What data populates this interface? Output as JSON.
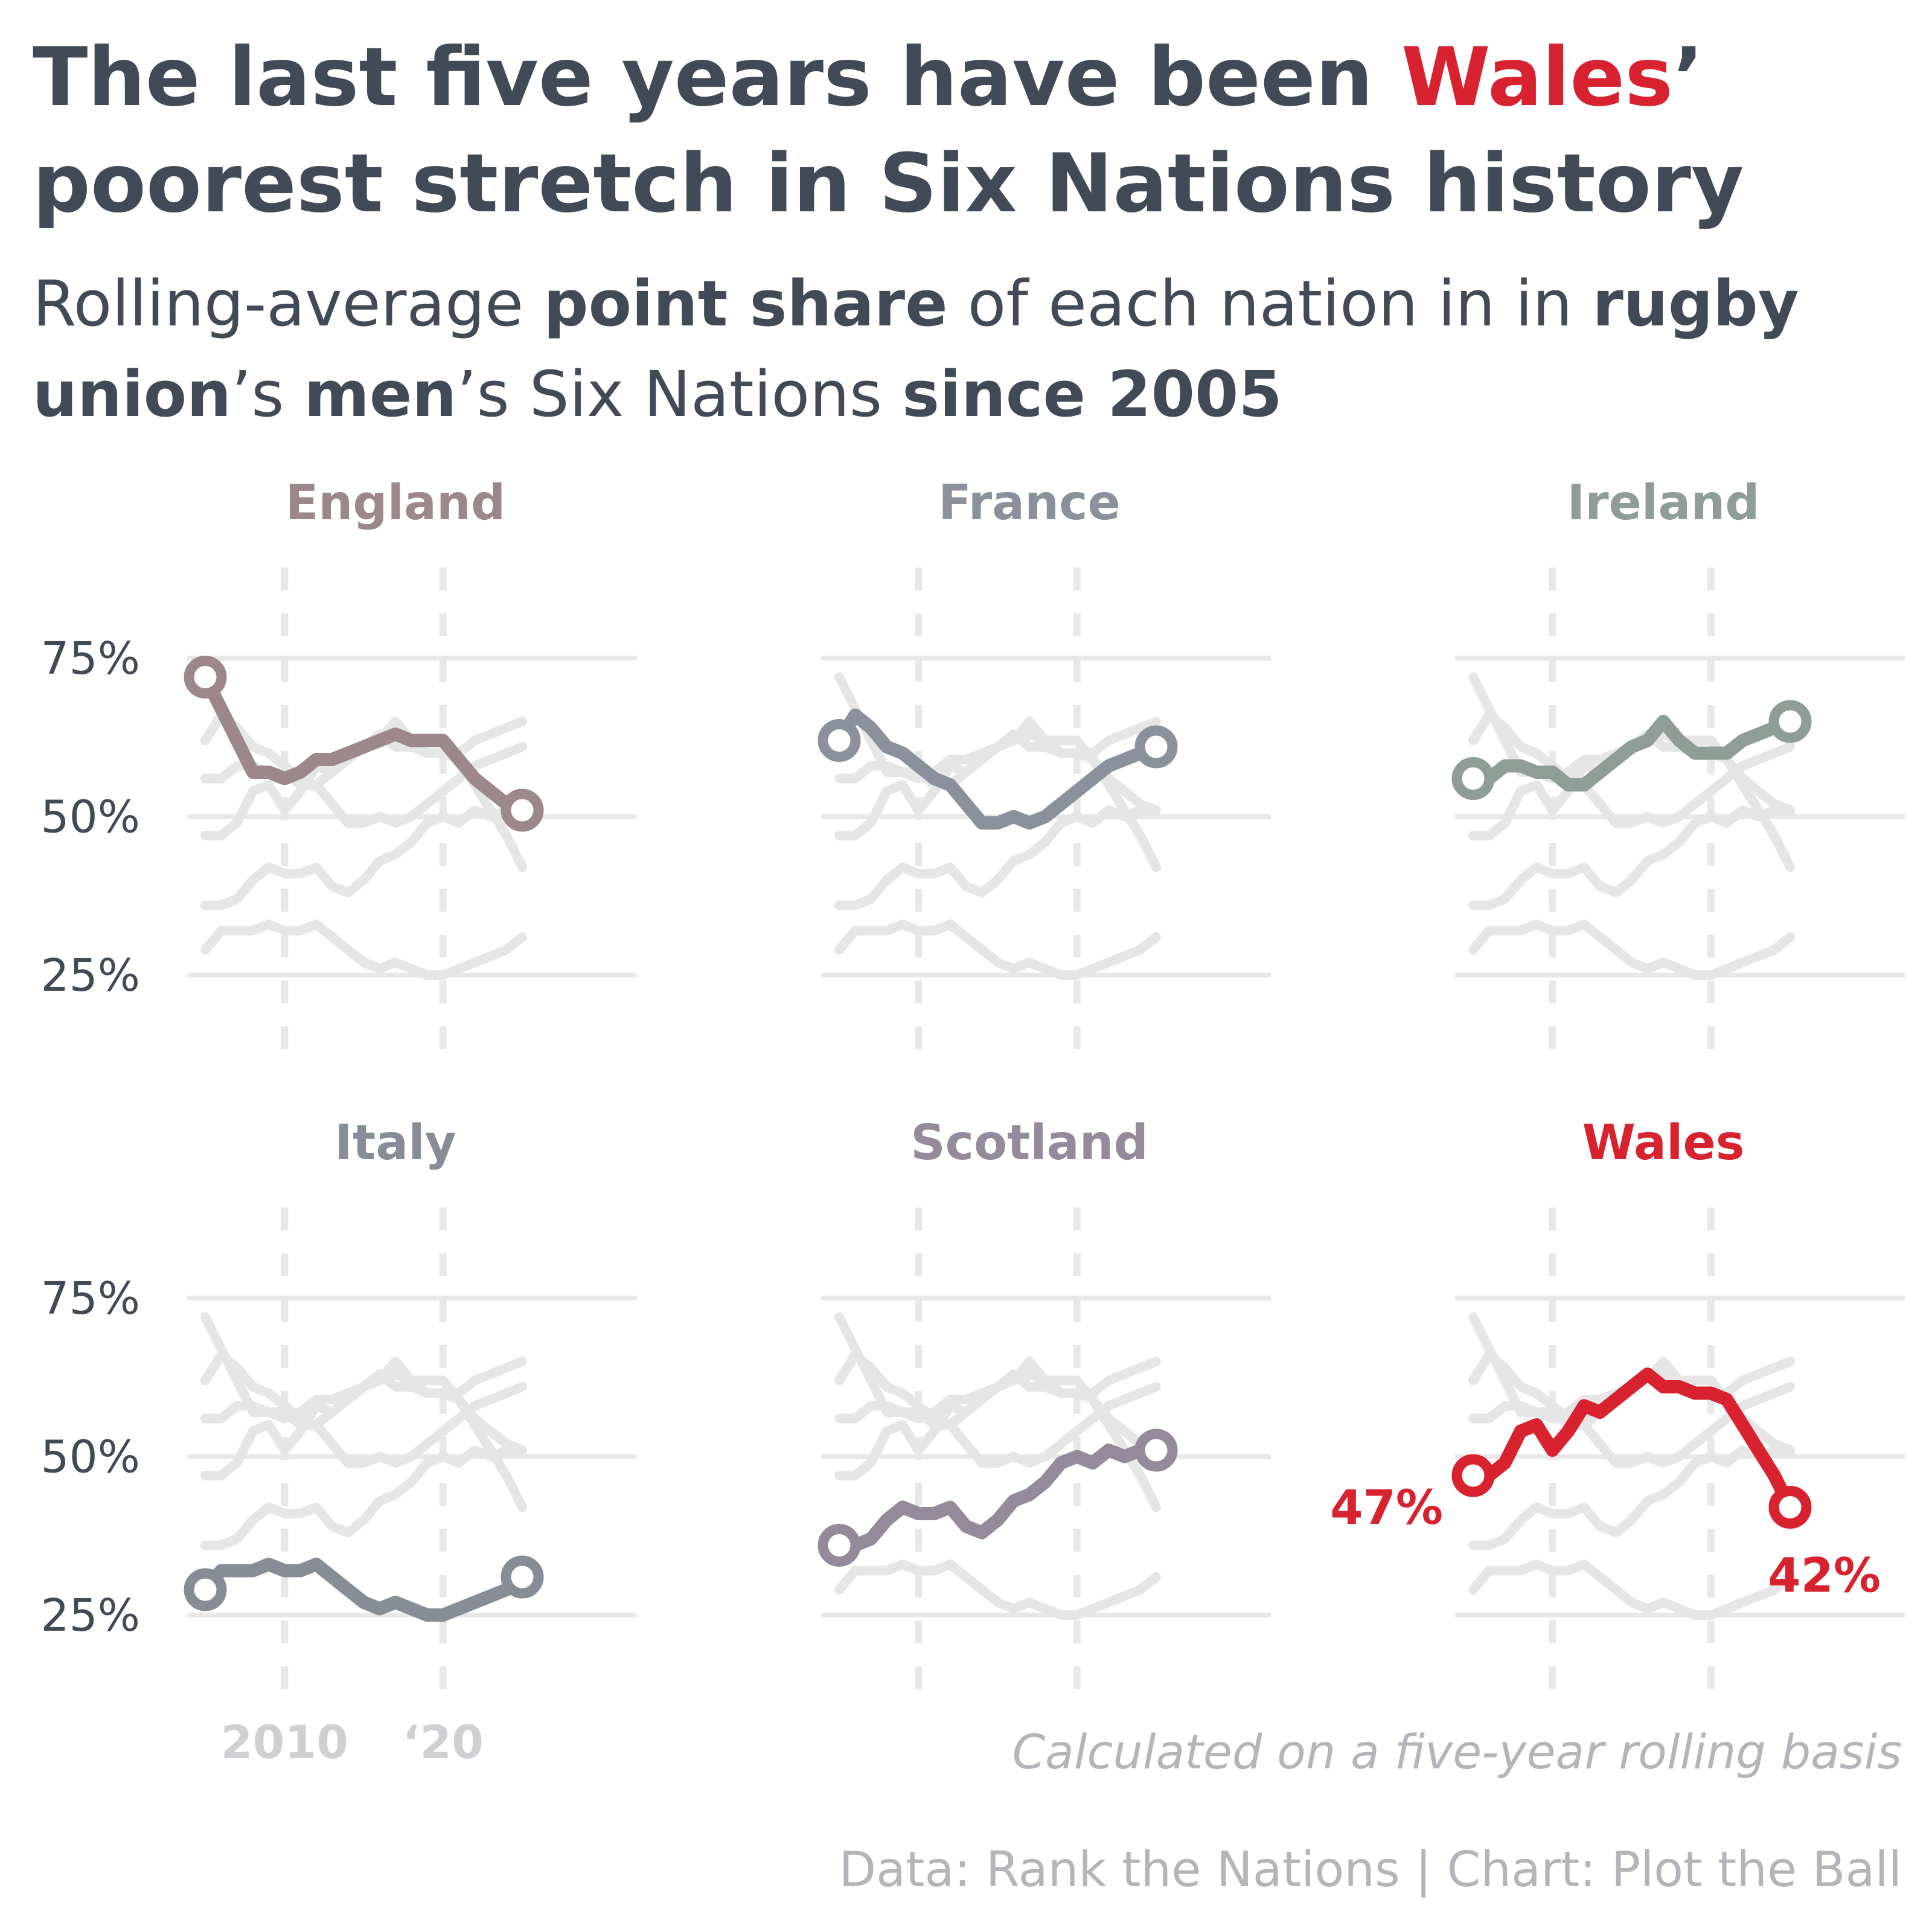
{
  "title": {
    "part1": "The last five years have been ",
    "highlight": "Wales",
    "part2": "’ poorest stretch in Six Nations history"
  },
  "subtitle": {
    "t1": "Rolling-average ",
    "b1": "point share",
    "t2": " of each nation in in ",
    "b2": "rugby union",
    "t3": "’s ",
    "b3": "men",
    "t4": "’s Six Nations ",
    "b4": "since 2005"
  },
  "note": "Calculated on a five-year rolling basis",
  "source": "Data: Rank the Nations | Chart: Plot the Ball",
  "colors": {
    "England": "#9c888b",
    "France": "#8a919c",
    "Ireland": "#8e9e96",
    "Italy": "#868d96",
    "Scotland": "#958a9c",
    "Wales": "#d8222f",
    "background_lines": "#e6e6e6",
    "grid": "#e8e8e8",
    "footer": "#b4b4ba"
  },
  "chart_data": {
    "type": "line",
    "title": "The last five years have been Wales’ poorest stretch in Six Nations history",
    "y_ticks": [
      "25%",
      "50%",
      "75%"
    ],
    "y_tick_values": [
      25,
      50,
      75
    ],
    "x_ticks": [
      "2010",
      "‘20"
    ],
    "x_tick_values": [
      2010,
      2020
    ],
    "xlim": [
      2004,
      2026
    ],
    "ylim": [
      20,
      80
    ],
    "grid": true,
    "x": [
      2005,
      2006,
      2007,
      2008,
      2009,
      2010,
      2011,
      2012,
      2013,
      2014,
      2015,
      2016,
      2017,
      2018,
      2019,
      2020,
      2021,
      2022,
      2023,
      2024,
      2025
    ],
    "series": [
      {
        "name": "England",
        "values": [
          72,
          67,
          62,
          57,
          57,
          56,
          57,
          59,
          59,
          60,
          61,
          62,
          63,
          62,
          62,
          62,
          59,
          56,
          54,
          52,
          51
        ]
      },
      {
        "name": "France",
        "values": [
          62,
          66,
          64,
          61,
          60,
          58,
          56,
          55,
          52,
          49,
          49,
          50,
          49,
          50,
          52,
          54,
          56,
          58,
          59,
          60,
          61
        ]
      },
      {
        "name": "Ireland",
        "values": [
          56,
          56,
          58,
          58,
          57,
          57,
          55,
          55,
          57,
          59,
          61,
          62,
          65,
          62,
          60,
          60,
          60,
          62,
          63,
          64,
          65
        ]
      },
      {
        "name": "Italy",
        "values": [
          29,
          32,
          32,
          32,
          33,
          32,
          32,
          33,
          31,
          29,
          27,
          26,
          27,
          26,
          25,
          25,
          26,
          27,
          28,
          29,
          31
        ]
      },
      {
        "name": "Scotland",
        "values": [
          36,
          36,
          37,
          40,
          42,
          41,
          41,
          42,
          39,
          38,
          40,
          43,
          44,
          46,
          49,
          50,
          49,
          51,
          50,
          51,
          51
        ]
      },
      {
        "name": "Wales",
        "values": [
          47,
          47,
          49,
          54,
          55,
          51,
          54,
          58,
          57,
          59,
          61,
          63,
          61,
          61,
          60,
          60,
          59,
          55,
          51,
          47,
          42
        ]
      }
    ],
    "annotations": [
      {
        "series": "Wales",
        "x": 2005,
        "label": "47%"
      },
      {
        "series": "Wales",
        "x": 2025,
        "label": "42%"
      }
    ]
  }
}
